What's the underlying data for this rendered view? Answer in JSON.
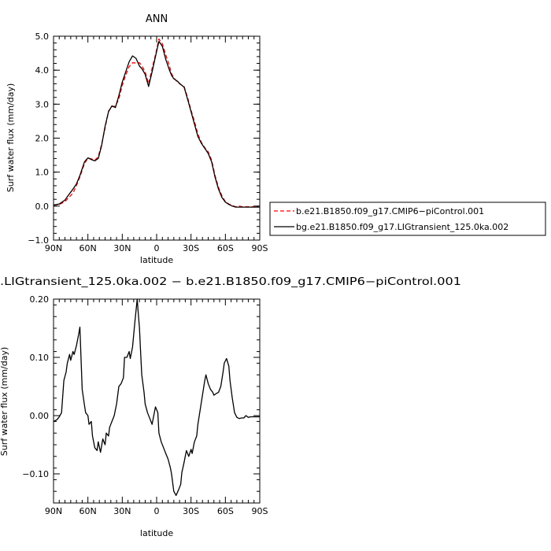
{
  "chart_data": [
    {
      "type": "line",
      "title": "ANN",
      "xlabel": "latitude",
      "ylabel": "Surf water flux (mm/day)",
      "xlim": [
        90,
        -90
      ],
      "ylim": [
        -1.0,
        5.0
      ],
      "xticks": [
        90,
        60,
        30,
        0,
        -30,
        -60,
        -90
      ],
      "xtick_labels": [
        "90N",
        "60N",
        "30N",
        "0",
        "30S",
        "60S",
        "90S"
      ],
      "yticks": [
        -1.0,
        0.0,
        1.0,
        2.0,
        3.0,
        4.0,
        5.0
      ],
      "ytick_labels": [
        "−1.0",
        "0.0",
        "1.0",
        "2.0",
        "3.0",
        "4.0",
        "5.0"
      ],
      "legend_position": "right",
      "series": [
        {
          "name": "b.e21.B1850.f09_g17.CMIP6−piControl.001",
          "color": "#ff0000",
          "dash": "dashed",
          "x": [
            90,
            85,
            80,
            77,
            73,
            70,
            67,
            63,
            60,
            57,
            54,
            51,
            48,
            45,
            42,
            39,
            36,
            33,
            30,
            27,
            24,
            21,
            18,
            15,
            13,
            10,
            7,
            4,
            1,
            -2,
            -5,
            -8,
            -11,
            -13,
            -15,
            -18,
            -21,
            -24,
            -27,
            -30,
            -33,
            -36,
            -39,
            -42,
            -45,
            -48,
            -51,
            -54,
            -57,
            -60,
            -63,
            -66,
            -69,
            -72,
            -75,
            -78,
            -81,
            -84,
            -87,
            -90
          ],
          "y": [
            0.03,
            0.05,
            0.13,
            0.24,
            0.38,
            0.6,
            0.86,
            1.25,
            1.41,
            1.39,
            1.35,
            1.45,
            1.82,
            2.3,
            2.8,
            2.93,
            2.94,
            3.15,
            3.55,
            3.85,
            4.1,
            4.22,
            4.21,
            4.22,
            4.14,
            3.95,
            3.6,
            4.05,
            4.45,
            4.92,
            4.78,
            4.45,
            4.15,
            3.9,
            3.78,
            3.65,
            3.58,
            3.52,
            3.2,
            2.82,
            2.5,
            2.12,
            1.88,
            1.72,
            1.6,
            1.35,
            0.9,
            0.55,
            0.3,
            0.13,
            0.06,
            0.02,
            -0.02,
            0.0,
            -0.02,
            -0.02,
            -0.02,
            -0.02,
            -0.02,
            -0.02
          ]
        },
        {
          "name": "bg.e21.B1850.f09_g17.LIGtransient_125.0ka.002",
          "color": "#000000",
          "dash": "solid",
          "x": [
            90,
            85,
            80,
            77,
            73,
            70,
            67,
            63,
            60,
            57,
            54,
            51,
            48,
            45,
            42,
            39,
            36,
            33,
            30,
            27,
            24,
            21,
            18,
            15,
            13,
            10,
            7,
            4,
            1,
            -2,
            -5,
            -8,
            -11,
            -13,
            -15,
            -18,
            -21,
            -24,
            -27,
            -30,
            -33,
            -36,
            -39,
            -42,
            -45,
            -48,
            -51,
            -54,
            -57,
            -60,
            -63,
            -66,
            -69,
            -72,
            -75,
            -78,
            -81,
            -84,
            -87,
            -90
          ],
          "y": [
            0.03,
            0.06,
            0.18,
            0.32,
            0.5,
            0.65,
            0.9,
            1.3,
            1.42,
            1.37,
            1.33,
            1.4,
            1.78,
            2.35,
            2.78,
            2.95,
            2.9,
            3.25,
            3.65,
            3.95,
            4.25,
            4.42,
            4.35,
            4.12,
            4.05,
            3.88,
            3.52,
            3.95,
            4.4,
            4.85,
            4.7,
            4.32,
            4.02,
            3.85,
            3.75,
            3.68,
            3.58,
            3.5,
            3.15,
            2.78,
            2.42,
            2.05,
            1.85,
            1.7,
            1.55,
            1.3,
            0.85,
            0.5,
            0.25,
            0.12,
            0.05,
            0.0,
            -0.03,
            -0.03,
            -0.03,
            -0.03,
            -0.03,
            -0.03,
            -0.03,
            -0.03
          ]
        }
      ]
    },
    {
      "type": "line",
      "title": ".LIGtransient_125.0ka.002 − b.e21.B1850.f09_g17.CMIP6−piControl.001",
      "xlabel": "latitude",
      "ylabel": "Surf water flux (mm/day)",
      "xlim": [
        90,
        -90
      ],
      "ylim": [
        -0.15,
        0.2
      ],
      "xticks": [
        90,
        60,
        30,
        0,
        -30,
        -60,
        -90
      ],
      "xtick_labels": [
        "90N",
        "60N",
        "30N",
        "0",
        "30S",
        "60S",
        "90S"
      ],
      "yticks": [
        -0.1,
        0.0,
        0.1,
        0.2
      ],
      "ytick_labels": [
        "−0.10",
        "0.00",
        "0.10",
        "0.20"
      ],
      "series": [
        {
          "color": "#000000",
          "dash": "solid",
          "x": [
            90,
            87,
            85,
            83,
            81,
            79,
            78,
            76,
            75,
            73,
            72,
            70,
            68,
            67,
            66,
            65,
            63,
            62,
            60,
            59,
            57,
            56,
            54,
            52,
            51,
            49,
            47,
            45,
            44,
            42,
            41,
            39,
            37,
            35,
            33,
            31,
            29,
            28,
            26,
            24,
            23,
            21,
            19,
            17,
            16,
            15,
            14,
            13,
            11,
            10,
            8,
            6,
            4,
            3,
            1,
            -1,
            -2,
            -4,
            -6,
            -8,
            -10,
            -12,
            -13,
            -15,
            -17,
            -19,
            -21,
            -22,
            -24,
            -26,
            -28,
            -30,
            -31,
            -33,
            -35,
            -36,
            -38,
            -40,
            -42,
            -43,
            -45,
            -47,
            -49,
            -50,
            -52,
            -54,
            -56,
            -58,
            -59,
            -61,
            -63,
            -64,
            -66,
            -68,
            -70,
            -72,
            -74,
            -76,
            -78,
            -80,
            -82,
            -84,
            -86,
            -88,
            -90
          ],
          "y": [
            -0.01,
            -0.007,
            -0.002,
            0.005,
            0.06,
            0.075,
            0.09,
            0.105,
            0.095,
            0.11,
            0.105,
            0.12,
            0.14,
            0.152,
            0.1,
            0.045,
            0.018,
            0.005,
            0.0,
            -0.015,
            -0.01,
            -0.035,
            -0.055,
            -0.06,
            -0.045,
            -0.063,
            -0.04,
            -0.05,
            -0.03,
            -0.035,
            -0.02,
            -0.01,
            0.0,
            0.02,
            0.05,
            0.055,
            0.065,
            0.1,
            0.1,
            0.11,
            0.098,
            0.118,
            0.16,
            0.2,
            0.175,
            0.15,
            0.11,
            0.07,
            0.04,
            0.02,
            0.005,
            -0.005,
            -0.015,
            -0.005,
            0.015,
            0.005,
            -0.03,
            -0.045,
            -0.055,
            -0.065,
            -0.075,
            -0.09,
            -0.1,
            -0.13,
            -0.137,
            -0.128,
            -0.118,
            -0.098,
            -0.08,
            -0.06,
            -0.07,
            -0.058,
            -0.065,
            -0.045,
            -0.035,
            -0.015,
            0.01,
            0.035,
            0.06,
            0.07,
            0.055,
            0.045,
            0.04,
            0.035,
            0.038,
            0.04,
            0.05,
            0.075,
            0.09,
            0.098,
            0.085,
            0.06,
            0.03,
            0.005,
            -0.003,
            -0.005,
            -0.004,
            -0.004,
            0.0,
            -0.003,
            -0.002,
            -0.002,
            -0.002,
            -0.002,
            -0.002
          ]
        }
      ]
    }
  ]
}
